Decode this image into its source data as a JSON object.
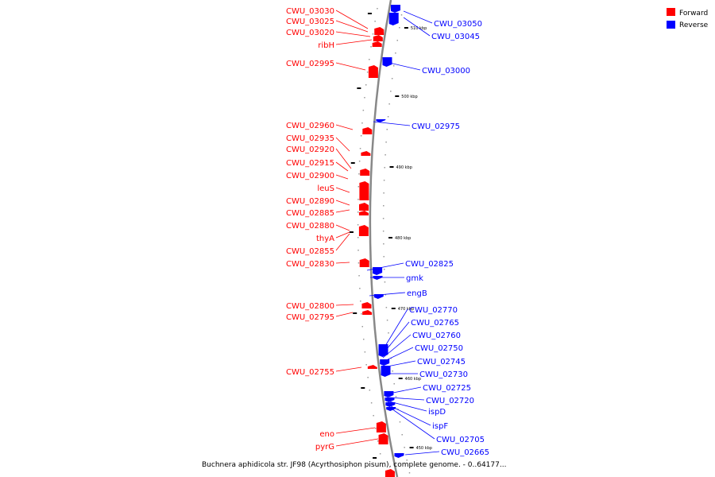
{
  "caption": "Buchnera aphidicola str. JF98 (Acyrthosiphon pisum), complete genome. - 0..64177...",
  "legend": [
    {
      "label": "Forward",
      "color": "#ff0000"
    },
    {
      "label": "Reverse",
      "color": "#0000ff"
    }
  ],
  "colors": {
    "forward": "#ff0000",
    "reverse": "#0000ff",
    "backbone": "#888888"
  },
  "ticks": [
    "510 kbp",
    "500 kbp",
    "490 kbp",
    "480 kbp",
    "470 kbp",
    "460 kbp",
    "450 kbp"
  ],
  "forward_genes": [
    "CWU_03030",
    "CWU_03025",
    "CWU_03020",
    "ribH",
    "CWU_02995",
    "CWU_02960",
    "CWU_02935",
    "CWU_02920",
    "CWU_02915",
    "CWU_02900",
    "leuS",
    "CWU_02890",
    "CWU_02885",
    "CWU_02880",
    "thyA",
    "CWU_02855",
    "CWU_02830",
    "CWU_02800",
    "CWU_02795",
    "CWU_02755",
    "eno",
    "pyrG"
  ],
  "reverse_genes": [
    "CWU_03050",
    "CWU_03045",
    "CWU_03000",
    "CWU_02975",
    "CWU_02825",
    "gmk",
    "engB",
    "CWU_02770",
    "CWU_02765",
    "CWU_02760",
    "CWU_02750",
    "CWU_02745",
    "CWU_02730",
    "CWU_02725",
    "CWU_02720",
    "ispD",
    "ispF",
    "CWU_02705",
    "CWU_02665"
  ]
}
